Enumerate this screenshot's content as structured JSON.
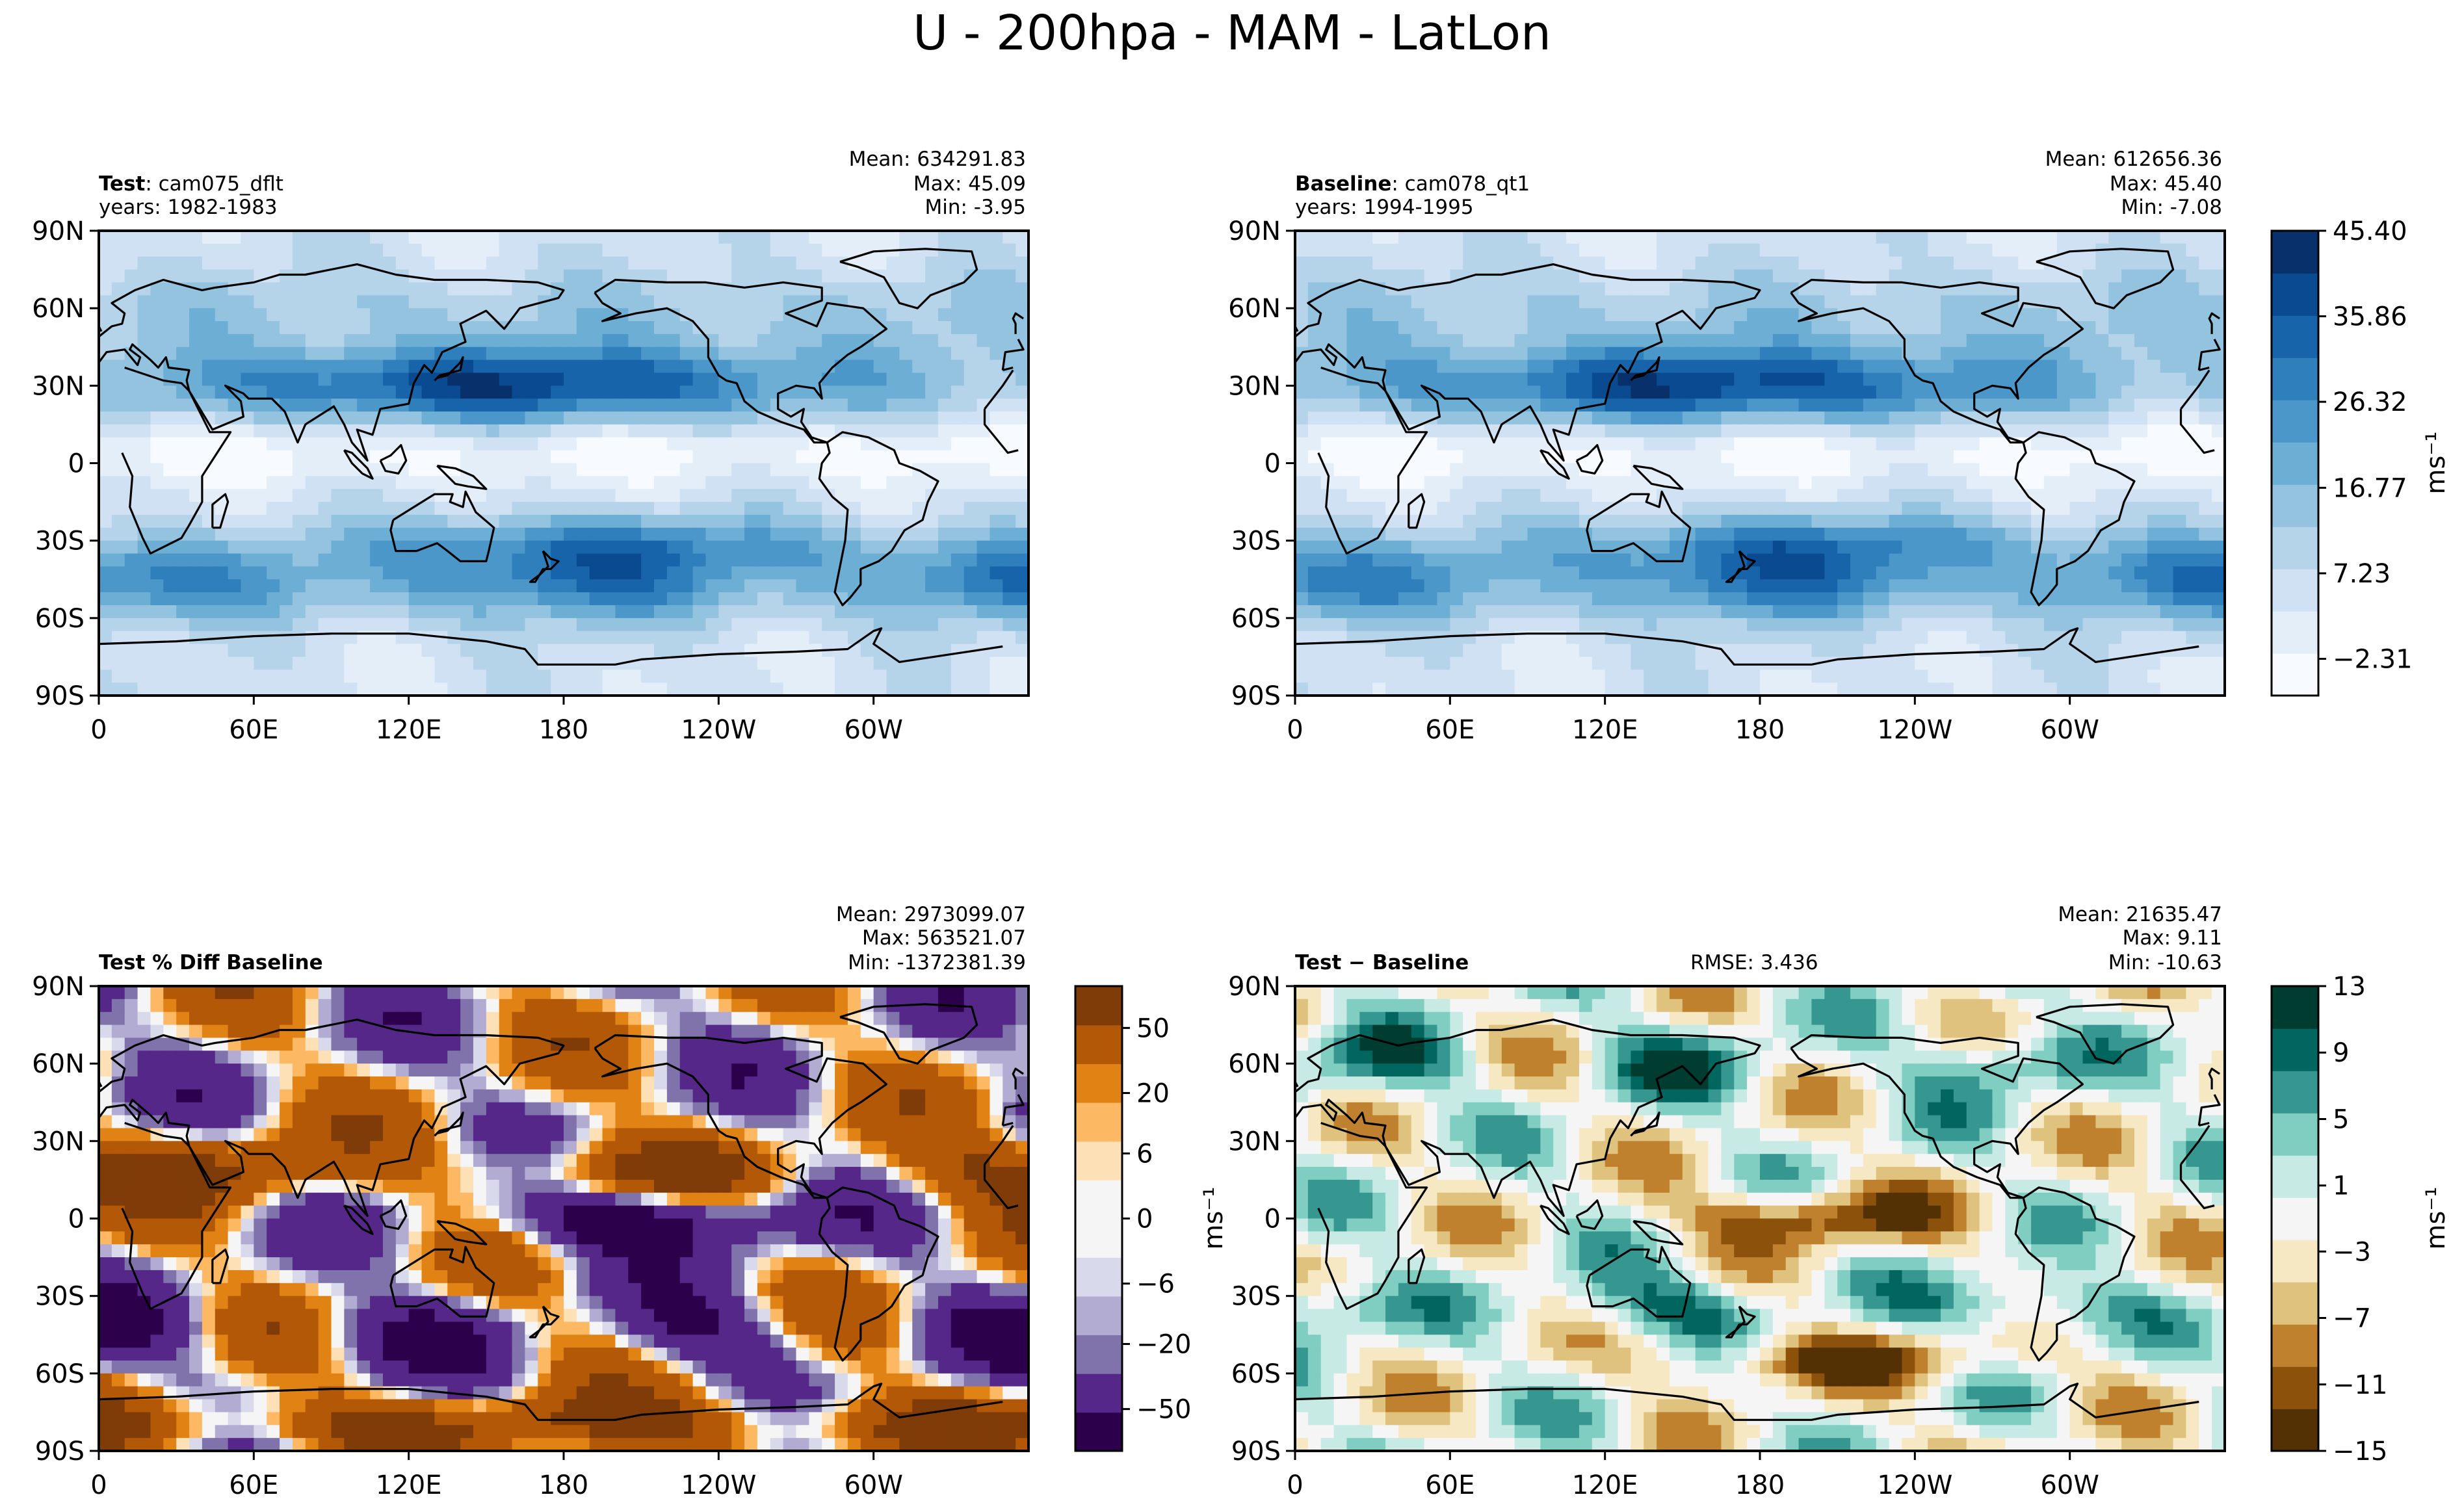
{
  "figure_title": "U - 200hpa - MAM - LatLon",
  "colors": {
    "seq": [
      "#f7fbff",
      "#e3eef9",
      "#cfe1f2",
      "#b5d4e9",
      "#93c3df",
      "#6daed5",
      "#4b97c9",
      "#2f7fbc",
      "#1864aa",
      "#0a4a90",
      "#08306b"
    ],
    "pct_pos": [
      "#fee0b6",
      "#fdb863",
      "#e08214",
      "#b35806",
      "#7f3b08"
    ],
    "pct_neg": [
      "#d8daeb",
      "#b2abd2",
      "#8073ac",
      "#542788",
      "#2d004b"
    ],
    "diff_pos": [
      "#c7eae5",
      "#80cdc1",
      "#35978f",
      "#01665e",
      "#003c30"
    ],
    "diff_neg": [
      "#f6e8c3",
      "#dfc27d",
      "#bf812d",
      "#8c510a",
      "#543005"
    ],
    "neutral": "#f5f5f5",
    "coast": "#000000"
  },
  "panels": {
    "test": {
      "label_bold": "Test",
      "label_rest": ": cam075_dflt",
      "years": "years: 1982-1983",
      "mean": "Mean: 634291.83",
      "max": "Max: 45.09",
      "min": "Min: -3.95"
    },
    "baseline": {
      "label_bold": "Baseline",
      "label_rest": ": cam078_qt1",
      "years": "years: 1994-1995",
      "mean": "Mean: 612656.36",
      "max": "Max: 45.40",
      "min": "Min: -7.08"
    },
    "pctdiff": {
      "label_bold": "Test % Diff Baseline",
      "mean": "Mean: 2973099.07",
      "max": "Max: 563521.07",
      "min": "Min: -1372381.39"
    },
    "diff": {
      "label_bold": "Test − Baseline",
      "rmse": "RMSE: 3.436",
      "mean": "Mean: 21635.47",
      "max": "Max:  9.11",
      "min": "Min: -10.63"
    }
  },
  "colorbars": {
    "seq": {
      "ticks": [
        "45.40",
        "35.86",
        "26.32",
        "16.77",
        "7.23",
        "−2.31"
      ],
      "unit": "ms⁻¹"
    },
    "pct": {
      "ticks": [
        "50",
        "20",
        "6",
        "0",
        "−6",
        "−20",
        "−50"
      ],
      "unit": "ms⁻¹"
    },
    "diff": {
      "ticks": [
        "13",
        "9",
        "5",
        "1",
        "−3",
        "−7",
        "−11",
        "−15"
      ],
      "unit": "ms⁻¹"
    }
  },
  "chart_data": [
    {
      "type": "heatmap",
      "name": "U 200hPa MAM - Test",
      "x_ticks": [
        "0",
        "60E",
        "120E",
        "180",
        "120W",
        "60W"
      ],
      "y_ticks": [
        "90N",
        "60N",
        "30N",
        "0",
        "30S",
        "60S",
        "90S"
      ],
      "xlim": [
        0,
        360
      ],
      "ylim": [
        -90,
        90
      ],
      "levels": [
        -4.7,
        -2.31,
        2.46,
        7.23,
        12.0,
        16.77,
        21.55,
        26.32,
        31.09,
        35.86,
        40.63,
        45.4
      ]
    },
    {
      "type": "heatmap",
      "name": "U 200hPa MAM - Baseline",
      "x_ticks": [
        "0",
        "60E",
        "120E",
        "180",
        "120W",
        "60W"
      ],
      "y_ticks": [
        "90N",
        "60N",
        "30N",
        "0",
        "30S",
        "60S",
        "90S"
      ],
      "xlim": [
        0,
        360
      ],
      "ylim": [
        -90,
        90
      ],
      "levels": [
        -4.7,
        -2.31,
        2.46,
        7.23,
        12.0,
        16.77,
        21.55,
        26.32,
        31.09,
        35.86,
        40.63,
        45.4
      ]
    },
    {
      "type": "heatmap",
      "name": "Test % Diff Baseline",
      "x_ticks": [
        "0",
        "60E",
        "120E",
        "180",
        "120W",
        "60W"
      ],
      "y_ticks": [
        "90N",
        "60N",
        "30N",
        "0",
        "30S",
        "60S",
        "90S"
      ],
      "xlim": [
        0,
        360
      ],
      "ylim": [
        -90,
        90
      ],
      "levels": [
        -100,
        -50,
        -20,
        -10,
        -6,
        -3,
        0,
        3,
        6,
        10,
        20,
        50,
        100
      ]
    },
    {
      "type": "heatmap",
      "name": "Test - Baseline",
      "x_ticks": [
        "0",
        "60E",
        "120E",
        "180",
        "120W",
        "60W"
      ],
      "y_ticks": [
        "90N",
        "60N",
        "30N",
        "0",
        "30S",
        "60S",
        "90S"
      ],
      "xlim": [
        0,
        360
      ],
      "ylim": [
        -90,
        90
      ],
      "levels": [
        -15,
        -11,
        -7,
        -3,
        1,
        5,
        9,
        13
      ]
    }
  ]
}
